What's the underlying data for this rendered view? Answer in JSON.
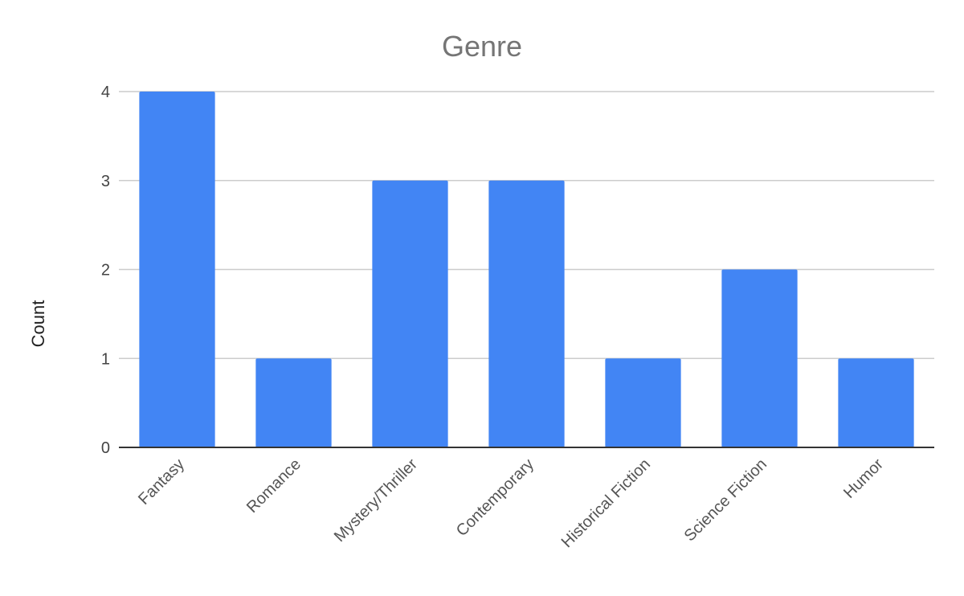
{
  "chart_data": {
    "type": "bar",
    "title": "Genre",
    "xlabel": "",
    "ylabel": "Count",
    "categories": [
      "Fantasy",
      "Romance",
      "Mystery/Thriller",
      "Contemporary",
      "Historical Fiction",
      "Science Fiction",
      "Humor"
    ],
    "values": [
      4,
      1,
      3,
      3,
      1,
      2,
      1
    ],
    "ylim": [
      0,
      4
    ],
    "yticks": [
      "0",
      "1",
      "2",
      "3",
      "4"
    ],
    "grid": true,
    "legend": "none",
    "bar_color": "#4285f4"
  }
}
